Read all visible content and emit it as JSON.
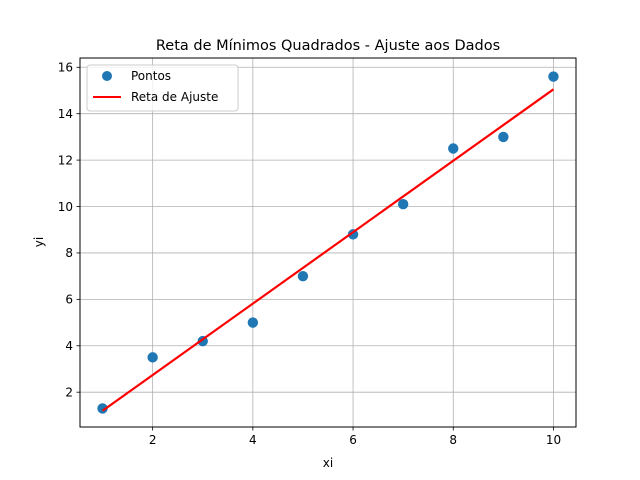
{
  "chart_data": {
    "type": "scatter",
    "title": "Reta de Mínimos Quadrados - Ajuste aos Dados",
    "xlabel": "xi",
    "ylabel": "yi",
    "xlim": [
      0.55,
      10.45
    ],
    "ylim": [
      0.5,
      16.4
    ],
    "xticks": [
      2,
      4,
      6,
      8,
      10
    ],
    "yticks": [
      2,
      4,
      6,
      8,
      10,
      12,
      14,
      16
    ],
    "grid": true,
    "legend_position": "top-left",
    "series": [
      {
        "name": "Pontos",
        "kind": "scatter",
        "color": "#1f77b4",
        "x": [
          1,
          2,
          3,
          4,
          5,
          6,
          7,
          8,
          9,
          10
        ],
        "y": [
          1.3,
          3.5,
          4.2,
          5.0,
          7.0,
          8.8,
          10.1,
          12.5,
          13.0,
          15.6
        ]
      },
      {
        "name": "Reta de Ajuste",
        "kind": "line",
        "color": "#ff0000",
        "x": [
          1,
          10
        ],
        "y": [
          1.2,
          15.05
        ]
      }
    ]
  }
}
